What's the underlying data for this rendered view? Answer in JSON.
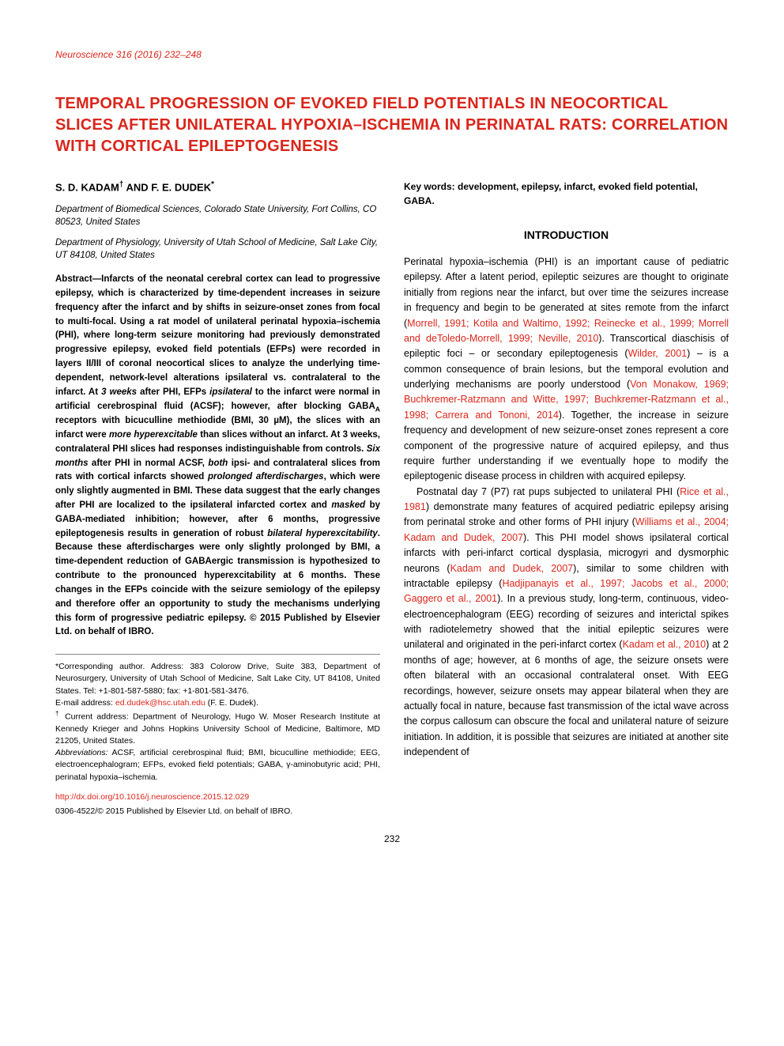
{
  "journal_citation": "Neuroscience 316 (2016) 232–248",
  "title": "TEMPORAL PROGRESSION OF EVOKED FIELD POTENTIALS IN NEOCORTICAL SLICES AFTER UNILATERAL HYPOXIA–ISCHEMIA IN PERINATAL RATS: CORRELATION WITH CORTICAL EPILEPTOGENESIS",
  "authors_html": "S. D. KADAM<span class=\"sup\">†</span> AND F. E. DUDEK<span class=\"sup\">*</span>",
  "affiliations": [
    "Department of Biomedical Sciences, Colorado State University, Fort Collins, CO 80523, United States",
    "Department of Physiology, University of Utah School of Medicine, Salt Lake City, UT 84108, United States"
  ],
  "abstract_html": "<span class=\"lead\">Abstract—</span>Infarcts of the neonatal cerebral cortex can lead to progressive epilepsy, which is characterized by time-dependent increases in seizure frequency after the infarct and by shifts in seizure-onset zones from focal to multi-focal. Using a rat model of unilateral perinatal hypoxia–ischemia (PHI), where long-term seizure monitoring had previously demonstrated progressive epilepsy, evoked field potentials (EFPs) were recorded in layers II/III of coronal neocortical slices to analyze the underlying time-dependent, network-level alterations ipsilateral vs. contralateral to the infarct. At <span class=\"italic\">3 weeks</span> after PHI, EFPs <span class=\"italic\">ipsilateral</span> to the infarct were normal in artificial cerebrospinal fluid (ACSF); however, after blocking GABA<span class=\"sub\">A</span> receptors with bicuculline methiodide (BMI, 30 µM), the slices with an infarct were <span class=\"italic\">more hyperexcitable</span> than slices without an infarct. At 3 weeks, contralateral PHI slices had responses indistinguishable from controls. <span class=\"italic\">Six months</span> after PHI in normal ACSF, <span class=\"italic\">both</span> ipsi- and contralateral slices from rats with cortical infarcts showed <span class=\"italic\">prolonged afterdischarges</span>, which were only slightly augmented in BMI. These data suggest that the early changes after PHI are localized to the ipsilateral infarcted cortex and <span class=\"italic\">masked</span> by GABA-mediated inhibition; however, after 6 months, progressive epileptogenesis results in generation of robust <span class=\"italic\">bilateral hyperexcitability</span>. Because these afterdischarges were only slightly prolonged by BMI, a time-dependent reduction of GABAergic transmission is hypothesized to contribute to the pronounced hyperexcitability at 6 months. These changes in the EFPs coincide with the seizure semiology of the epilepsy and therefore offer an opportunity to study the mechanisms underlying this form of progressive pediatric epilepsy. © 2015 Published by Elsevier Ltd. on behalf of IBRO.",
  "keywords": "Key words: development, epilepsy, infarct, evoked field potential, GABA.",
  "intro_heading": "INTRODUCTION",
  "intro_p1_html": "Perinatal hypoxia–ischemia (PHI) is an important cause of pediatric epilepsy. After a latent period, epileptic seizures are thought to originate initially from regions near the infarct, but over time the seizures increase in frequency and begin to be generated at sites remote from the infarct (<span class=\"cite\">Morrell, 1991; Kotila and Waltimo, 1992; Reinecke et al., 1999; Morrell and deToledo-Morrell, 1999; Neville, 2010</span>). Transcortical diaschisis of epileptic foci – or secondary epileptogenesis (<span class=\"cite\">Wilder, 2001</span>) – is a common consequence of brain lesions, but the temporal evolution and underlying mechanisms are poorly understood (<span class=\"cite\">Von Monakow, 1969; Buchkremer-Ratzmann and Witte, 1997; Buchkremer-Ratzmann et al., 1998; Carrera and Tononi, 2014</span>). Together, the increase in seizure frequency and development of new seizure-onset zones represent a core component of the progressive nature of acquired epilepsy, and thus require further understanding if we eventually hope to modify the epileptogenic disease process in children with acquired epilepsy.",
  "intro_p2_html": "Postnatal day 7 (P7) rat pups subjected to unilateral PHI (<span class=\"cite\">Rice et al., 1981</span>) demonstrate many features of acquired pediatric epilepsy arising from perinatal stroke and other forms of PHI injury (<span class=\"cite\">Williams et al., 2004; Kadam and Dudek, 2007</span>). This PHI model shows ipsilateral cortical infarcts with peri-infarct cortical dysplasia, microgyri and dysmorphic neurons (<span class=\"cite\">Kadam and Dudek, 2007</span>), similar to some children with intractable epilepsy (<span class=\"cite\">Hadjipanayis et al., 1997; Jacobs et al., 2000; Gaggero et al., 2001</span>). In a previous study, long-term, continuous, video-electroencephalogram (EEG) recording of seizures and interictal spikes with radiotelemetry showed that the initial epileptic seizures were unilateral and originated in the peri-infarct cortex (<span class=\"cite\">Kadam et al., 2010</span>) at 2 months of age; however, at 6 months of age, the seizure onsets were often bilateral with an occasional contralateral onset. With EEG recordings, however, seizure onsets may appear bilateral when they are actually focal in nature, because fast transmission of the ictal wave across the corpus callosum can obscure the focal and unilateral nature of seizure initiation. In addition, it is possible that seizures are initiated at another site independent of",
  "footnotes": {
    "corresponding_html": "*Corresponding author. Address: 383 Colorow Drive, Suite 383, Department of Neurosurgery, University of Utah School of Medicine, Salt Lake City, UT 84108, United States. Tel: +1-801-587-5880; fax: +1-801-581-3476.",
    "email_label": "E-mail address: ",
    "email": "ed.dudek@hsc.utah.edu",
    "email_person": " (F. E. Dudek).",
    "current_html": "<span class=\"sup\">†</span> Current address: Department of Neurology, Hugo W. Moser Research Institute at Kennedy Krieger and Johns Hopkins University School of Medicine, Baltimore, MD 21205, United States.",
    "abbrev_html": "<span class=\"italic\">Abbreviations:</span> ACSF, artificial cerebrospinal fluid; BMI, bicuculline methiodide; EEG, electroencephalogram; EFPs, evoked field potentials; GABA, γ-aminobutyric acid; PHI, perinatal hypoxia–ischemia."
  },
  "doi_url": "http://dx.doi.org/10.1016/j.neuroscience.2015.12.029",
  "issn_line": "0306-4522/© 2015 Published by Elsevier Ltd. on behalf of IBRO.",
  "page_number": "232"
}
